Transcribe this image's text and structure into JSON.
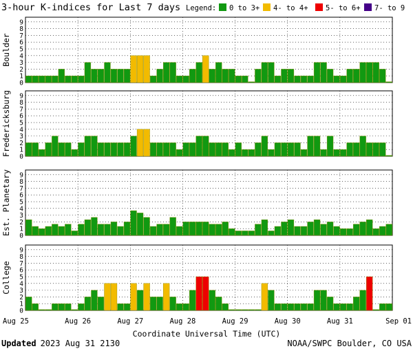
{
  "chart_data": {
    "type": "bar",
    "title": "3-hour K-indices for Last 7 days",
    "legend": {
      "label": "Legend:",
      "placement": "top-right",
      "entries": [
        {
          "label": "0 to 3+",
          "color": "#119911"
        },
        {
          "label": "4- to 4+",
          "color": "#f2bb00"
        },
        {
          "label": "5- to 6+",
          "color": "#ee0000"
        },
        {
          "label": "7- to 9",
          "color": "#440088"
        }
      ]
    },
    "ylim": [
      0,
      9
    ],
    "yticks": [
      "0",
      "1",
      "2",
      "3",
      "4",
      "5",
      "6",
      "7",
      "8",
      "9"
    ],
    "xlabel": "Coordinate Universal Time (UTC)",
    "xticks": [
      "Aug 25",
      "Aug 26",
      "Aug 27",
      "Aug 28",
      "Aug 29",
      "Aug 30",
      "Aug 31",
      "Sep 01"
    ],
    "intervals_per_day": 8,
    "days": 7,
    "grid": true,
    "panels": [
      {
        "name": "Boulder",
        "values": [
          1,
          1,
          1,
          1,
          1,
          2,
          1,
          1,
          1,
          3,
          2,
          2,
          3,
          2,
          2,
          2,
          4,
          4,
          4,
          1,
          2,
          3,
          3,
          1,
          1,
          2,
          3,
          4,
          2,
          3,
          2,
          2,
          1,
          1,
          0,
          2,
          3,
          3,
          1,
          2,
          2,
          1,
          1,
          1,
          3,
          3,
          2,
          1,
          1,
          2,
          2,
          3,
          3,
          3,
          2,
          0
        ]
      },
      {
        "name": "Fredericksburg",
        "values": [
          2,
          2,
          1,
          2,
          3,
          2,
          2,
          1,
          2,
          3,
          3,
          2,
          2,
          2,
          2,
          2,
          3,
          4,
          4,
          2,
          2,
          2,
          2,
          1,
          2,
          2,
          3,
          3,
          2,
          2,
          2,
          1,
          2,
          1,
          1,
          2,
          3,
          1,
          2,
          2,
          2,
          2,
          1,
          3,
          3,
          1,
          3,
          1,
          1,
          2,
          2,
          3,
          2,
          2,
          2,
          0
        ]
      },
      {
        "name": "Est. Planetary",
        "values": [
          2.33,
          1.33,
          1,
          1.33,
          1.67,
          1.33,
          1.67,
          0.67,
          1.67,
          2.33,
          2.67,
          1.67,
          1.67,
          2,
          1.33,
          2,
          3.67,
          3.33,
          2.67,
          1.33,
          1.67,
          1.67,
          2.67,
          1.33,
          2,
          2,
          2,
          2,
          1.67,
          1.67,
          2,
          1,
          0.67,
          0.67,
          0.67,
          1.67,
          2.33,
          0.67,
          1.33,
          2,
          2.33,
          1.33,
          1.33,
          2,
          2.33,
          1.67,
          2,
          1.33,
          1,
          1,
          1.67,
          2,
          2.33,
          1,
          1.33,
          1.67
        ]
      },
      {
        "name": "College",
        "values": [
          2,
          1,
          0,
          0,
          1,
          1,
          1,
          0,
          1,
          2,
          3,
          2,
          4,
          4,
          1,
          1,
          4,
          3,
          4,
          2,
          2,
          4,
          2,
          1,
          1,
          3,
          5,
          5,
          3,
          2,
          1,
          0,
          0,
          0,
          0,
          0,
          4,
          3,
          1,
          1,
          1,
          1,
          1,
          1,
          3,
          3,
          2,
          1,
          1,
          1,
          2,
          3,
          5,
          0,
          1,
          1
        ]
      }
    ]
  },
  "footer": {
    "updated_label": "Updated",
    "updated_value": "2023 Aug 31 2130",
    "credit": "NOAA/SWPC Boulder, CO USA"
  }
}
